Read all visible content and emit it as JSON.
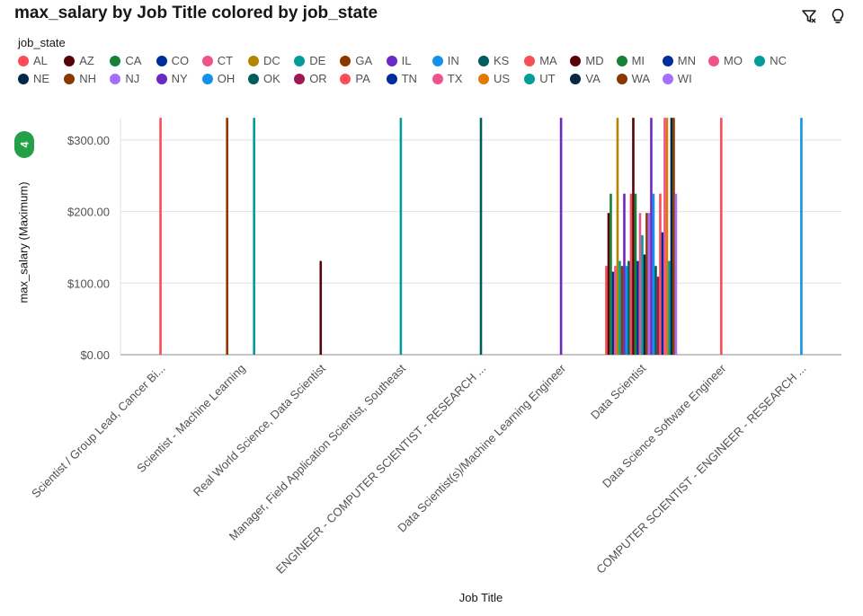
{
  "header": {
    "title": "max_salary by Job Title colored by job_state",
    "filter_icon": "filter-icon",
    "insight_icon": "lightbulb-icon"
  },
  "legend": {
    "title": "job_state",
    "items": [
      {
        "label": "AL",
        "color": "#fa4d56"
      },
      {
        "label": "AZ",
        "color": "#570408"
      },
      {
        "label": "CA",
        "color": "#198038"
      },
      {
        "label": "CO",
        "color": "#002d9c"
      },
      {
        "label": "CT",
        "color": "#ee538b"
      },
      {
        "label": "DC",
        "color": "#b28600"
      },
      {
        "label": "DE",
        "color": "#009d9a"
      },
      {
        "label": "GA",
        "color": "#8a3800"
      },
      {
        "label": "IL",
        "color": "#6929c4"
      },
      {
        "label": "IN",
        "color": "#1192e8"
      },
      {
        "label": "KS",
        "color": "#005d5d"
      },
      {
        "label": "MA",
        "color": "#fa4d56"
      },
      {
        "label": "MD",
        "color": "#570408"
      },
      {
        "label": "MI",
        "color": "#198038"
      },
      {
        "label": "MN",
        "color": "#002d9c"
      },
      {
        "label": "MO",
        "color": "#ee538b"
      },
      {
        "label": "NC",
        "color": "#009d9a"
      },
      {
        "label": "NE",
        "color": "#012749"
      },
      {
        "label": "NH",
        "color": "#8a3800"
      },
      {
        "label": "NJ",
        "color": "#a56eff"
      },
      {
        "label": "NY",
        "color": "#6929c4"
      },
      {
        "label": "OH",
        "color": "#1192e8"
      },
      {
        "label": "OK",
        "color": "#005d5d"
      },
      {
        "label": "OR",
        "color": "#9f1853"
      },
      {
        "label": "PA",
        "color": "#fa4d56"
      },
      {
        "label": "TN",
        "color": "#002d9c"
      },
      {
        "label": "TX",
        "color": "#ee538b"
      },
      {
        "label": "US",
        "color": "#e07a00"
      },
      {
        "label": "UT",
        "color": "#009d9a"
      },
      {
        "label": "VA",
        "color": "#012749"
      },
      {
        "label": "WA",
        "color": "#8a3800"
      },
      {
        "label": "WI",
        "color": "#a56eff"
      }
    ]
  },
  "badge": "4",
  "chart_data": {
    "type": "bar",
    "title": "max_salary by Job Title colored by job_state",
    "xlabel": "Job Title",
    "ylabel": "max_salary (Maximum)",
    "ylim": [
      0,
      330
    ],
    "yticks": [
      0,
      100,
      200,
      300
    ],
    "ytick_labels": [
      "$0.00",
      "$100.00",
      "$200.00",
      "$300.00"
    ],
    "grid": true,
    "categories": [
      "Scientist / Group Lead, Cancer Bi...",
      "Scientist - Machine Learning",
      "Real World Science, Data Scientist",
      "Manager, Field Application Scientist, Southeast",
      "ENGINEER - COMPUTER SCIENTIST - RESEARCH ...",
      "Data Scientist(s)/Machine Learning Engineer",
      "Data Scientist",
      "Data Science Software Engineer",
      "COMPUTER SCIENTIST - ENGINEER - RESEARCH ..."
    ],
    "bars": [
      {
        "category": 0,
        "state": "AL",
        "value": 331
      },
      {
        "category": 1,
        "state": "GA",
        "value": 331
      },
      {
        "category": 1,
        "state": "DE",
        "value": 331
      },
      {
        "category": 2,
        "state": "AZ",
        "value": 131
      },
      {
        "category": 3,
        "state": "DE",
        "value": 331
      },
      {
        "category": 4,
        "state": "KS",
        "value": 331
      },
      {
        "category": 5,
        "state": "IL",
        "value": 331
      },
      {
        "category": 6,
        "state": "AL",
        "value": 124
      },
      {
        "category": 6,
        "state": "AZ",
        "value": 198
      },
      {
        "category": 6,
        "state": "CA",
        "value": 225
      },
      {
        "category": 6,
        "state": "CO",
        "value": 116
      },
      {
        "category": 6,
        "state": "CT",
        "value": 124
      },
      {
        "category": 6,
        "state": "DC",
        "value": 331
      },
      {
        "category": 6,
        "state": "DE",
        "value": 131
      },
      {
        "category": 6,
        "state": "GA",
        "value": 124
      },
      {
        "category": 6,
        "state": "IL",
        "value": 225
      },
      {
        "category": 6,
        "state": "IN",
        "value": 124
      },
      {
        "category": 6,
        "state": "KS",
        "value": 131
      },
      {
        "category": 6,
        "state": "MA",
        "value": 225
      },
      {
        "category": 6,
        "state": "MD",
        "value": 331
      },
      {
        "category": 6,
        "state": "MI",
        "value": 225
      },
      {
        "category": 6,
        "state": "MN",
        "value": 131
      },
      {
        "category": 6,
        "state": "MO",
        "value": 198
      },
      {
        "category": 6,
        "state": "NC",
        "value": 167
      },
      {
        "category": 6,
        "state": "NE",
        "value": 140
      },
      {
        "category": 6,
        "state": "NH",
        "value": 198
      },
      {
        "category": 6,
        "state": "NJ",
        "value": 198
      },
      {
        "category": 6,
        "state": "NY",
        "value": 331
      },
      {
        "category": 6,
        "state": "OH",
        "value": 225
      },
      {
        "category": 6,
        "state": "OK",
        "value": 124
      },
      {
        "category": 6,
        "state": "OR",
        "value": 109
      },
      {
        "category": 6,
        "state": "PA",
        "value": 225
      },
      {
        "category": 6,
        "state": "TN",
        "value": 171
      },
      {
        "category": 6,
        "state": "TX",
        "value": 331
      },
      {
        "category": 6,
        "state": "US",
        "value": 331
      },
      {
        "category": 6,
        "state": "UT",
        "value": 131
      },
      {
        "category": 6,
        "state": "VA",
        "value": 331
      },
      {
        "category": 6,
        "state": "WA",
        "value": 331
      },
      {
        "category": 6,
        "state": "WI",
        "value": 225
      },
      {
        "category": 7,
        "state": "AL",
        "value": 331
      },
      {
        "category": 8,
        "state": "IN",
        "value": 331
      }
    ]
  }
}
